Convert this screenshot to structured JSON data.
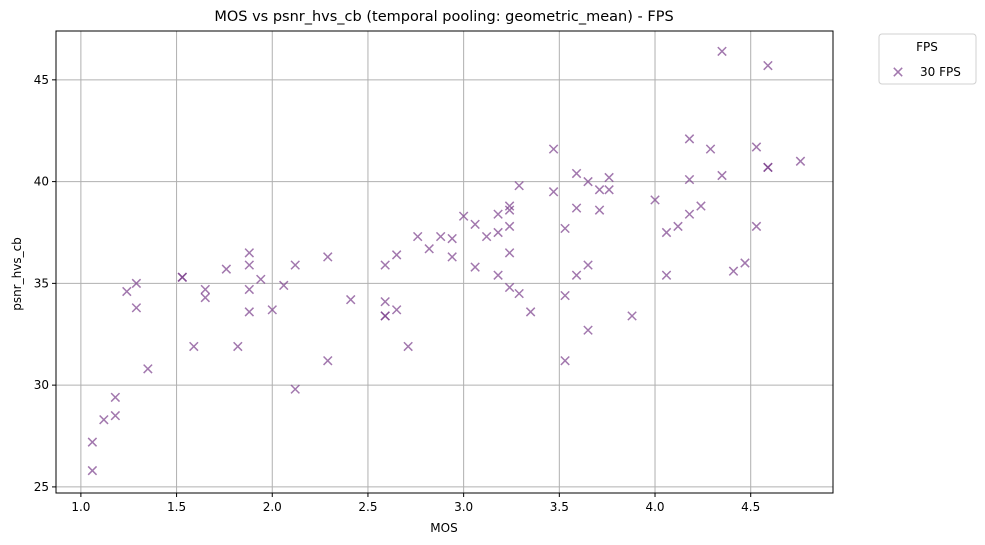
{
  "chart_data": {
    "type": "scatter",
    "title": "MOS vs psnr_hvs_cb (temporal pooling: geometric_mean) - FPS",
    "xlabel": "MOS",
    "ylabel": "psnr_hvs_cb",
    "xlim": [
      0.87,
      4.93
    ],
    "ylim": [
      24.7,
      47.4
    ],
    "xticks": [
      "1.0",
      "1.5",
      "2.0",
      "2.5",
      "3.0",
      "3.5",
      "4.0",
      "4.5"
    ],
    "yticks": [
      "25",
      "30",
      "35",
      "40",
      "45"
    ],
    "grid": true,
    "marker": "x",
    "legend": {
      "title": "FPS",
      "placement": "outside-top-right"
    },
    "series": [
      {
        "name": "30 FPS",
        "color": "#7b3f8c",
        "points": [
          [
            1.06,
            27.2
          ],
          [
            1.06,
            25.8
          ],
          [
            1.12,
            28.3
          ],
          [
            1.18,
            29.4
          ],
          [
            1.18,
            28.5
          ],
          [
            1.24,
            34.6
          ],
          [
            1.29,
            35.0
          ],
          [
            1.29,
            33.8
          ],
          [
            1.35,
            30.8
          ],
          [
            1.53,
            35.3
          ],
          [
            1.53,
            35.3
          ],
          [
            1.59,
            31.9
          ],
          [
            1.65,
            34.7
          ],
          [
            1.65,
            34.3
          ],
          [
            1.76,
            35.7
          ],
          [
            1.82,
            31.9
          ],
          [
            1.88,
            36.5
          ],
          [
            1.88,
            35.9
          ],
          [
            1.88,
            34.7
          ],
          [
            1.88,
            33.6
          ],
          [
            1.94,
            35.2
          ],
          [
            2.0,
            33.7
          ],
          [
            2.06,
            34.9
          ],
          [
            2.12,
            35.9
          ],
          [
            2.12,
            29.8
          ],
          [
            2.29,
            36.3
          ],
          [
            2.29,
            31.2
          ],
          [
            2.41,
            34.2
          ],
          [
            2.59,
            35.9
          ],
          [
            2.59,
            34.1
          ],
          [
            2.59,
            33.4
          ],
          [
            2.59,
            33.4
          ],
          [
            2.65,
            36.4
          ],
          [
            2.65,
            33.7
          ],
          [
            2.71,
            31.9
          ],
          [
            2.76,
            37.3
          ],
          [
            2.82,
            36.7
          ],
          [
            2.88,
            37.3
          ],
          [
            2.94,
            37.2
          ],
          [
            2.94,
            36.3
          ],
          [
            3.0,
            38.3
          ],
          [
            3.06,
            37.9
          ],
          [
            3.06,
            35.8
          ],
          [
            3.12,
            37.3
          ],
          [
            3.18,
            38.4
          ],
          [
            3.18,
            37.5
          ],
          [
            3.18,
            35.4
          ],
          [
            3.24,
            38.8
          ],
          [
            3.24,
            38.6
          ],
          [
            3.24,
            37.8
          ],
          [
            3.24,
            36.5
          ],
          [
            3.24,
            34.8
          ],
          [
            3.29,
            39.8
          ],
          [
            3.29,
            34.5
          ],
          [
            3.35,
            33.6
          ],
          [
            3.47,
            41.6
          ],
          [
            3.47,
            39.5
          ],
          [
            3.53,
            37.7
          ],
          [
            3.53,
            34.4
          ],
          [
            3.53,
            31.2
          ],
          [
            3.59,
            40.4
          ],
          [
            3.59,
            38.7
          ],
          [
            3.59,
            35.4
          ],
          [
            3.65,
            40.0
          ],
          [
            3.65,
            35.9
          ],
          [
            3.65,
            32.7
          ],
          [
            3.71,
            39.6
          ],
          [
            3.71,
            38.6
          ],
          [
            3.76,
            40.2
          ],
          [
            3.76,
            39.6
          ],
          [
            3.88,
            33.4
          ],
          [
            4.0,
            39.1
          ],
          [
            4.06,
            37.5
          ],
          [
            4.06,
            35.4
          ],
          [
            4.12,
            37.8
          ],
          [
            4.18,
            42.1
          ],
          [
            4.18,
            40.1
          ],
          [
            4.18,
            38.4
          ],
          [
            4.24,
            38.8
          ],
          [
            4.29,
            41.6
          ],
          [
            4.35,
            46.4
          ],
          [
            4.35,
            40.3
          ],
          [
            4.41,
            35.6
          ],
          [
            4.47,
            36.0
          ],
          [
            4.53,
            41.7
          ],
          [
            4.53,
            37.8
          ],
          [
            4.59,
            45.7
          ],
          [
            4.59,
            40.7
          ],
          [
            4.59,
            40.7
          ],
          [
            4.76,
            41.0
          ]
        ]
      }
    ]
  }
}
